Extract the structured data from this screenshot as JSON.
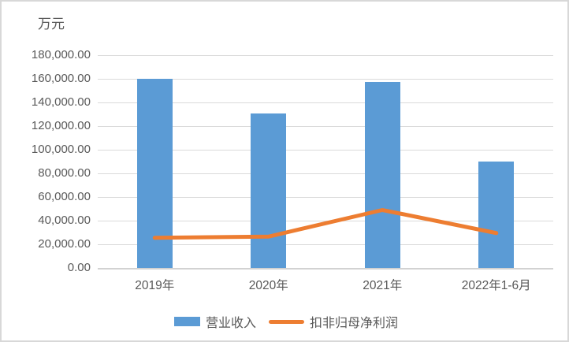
{
  "chart_data": {
    "type": "bar",
    "subtype": "combo-bar-line",
    "title": "",
    "unit_label": "万元",
    "categories": [
      "2019年",
      "2020年",
      "2021年",
      "2022年1-6月"
    ],
    "series": [
      {
        "name": "营业收入",
        "type": "bar",
        "color": "#5B9BD5",
        "values": [
          160000,
          130500,
          157500,
          90000
        ]
      },
      {
        "name": "扣非归母净利润",
        "type": "line",
        "color": "#ED7D31",
        "values": [
          25500,
          26500,
          49000,
          29500
        ]
      }
    ],
    "ylim": [
      0,
      180000
    ],
    "ytick_step": 20000,
    "ytick_labels": [
      "0.00",
      "20,000.00",
      "40,000.00",
      "60,000.00",
      "80,000.00",
      "100,000.00",
      "120,000.00",
      "140,000.00",
      "160,000.00",
      "180,000.00"
    ],
    "grid": true,
    "legend_position": "bottom",
    "colors": {
      "text": "#595959",
      "gridline": "#DADADA",
      "axis_line": "#D2D2D2",
      "frame_border": "#D8D8D8"
    }
  }
}
